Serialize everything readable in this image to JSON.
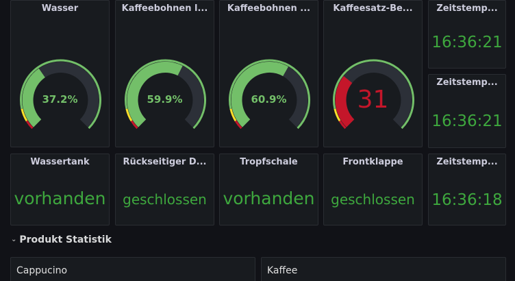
{
  "gauges": [
    {
      "title": "Wasser",
      "value": 37.2,
      "display": "37.2%",
      "color": "#73bf69"
    },
    {
      "title": "Kaffeebohnen l...",
      "value": 59.9,
      "display": "59.9%",
      "color": "#73bf69"
    },
    {
      "title": "Kaffeebohnen ...",
      "value": 60.9,
      "display": "60.9%",
      "color": "#73bf69"
    },
    {
      "title": "Kaffeesatz-Be...",
      "value": 31,
      "display": "31",
      "color": "#c4162a"
    }
  ],
  "timestamps": [
    {
      "title": "Zeitstemp...",
      "value": "16:36:21"
    },
    {
      "title": "Zeitstemp...",
      "value": "16:36:21"
    },
    {
      "title": "Zeitstemp...",
      "value": "16:36:18"
    }
  ],
  "status": [
    {
      "title": "Wassertank",
      "value": "vorhanden"
    },
    {
      "title": "Rückseitiger D...",
      "value": "geschlossen"
    },
    {
      "title": "Tropfschale",
      "value": "vorhanden"
    },
    {
      "title": "Frontklappe",
      "value": "geschlossen"
    }
  ],
  "row": {
    "title": "Produkt Statistik"
  },
  "products": [
    {
      "title": "Cappucino",
      "fill_fraction": 0.36
    },
    {
      "title": "Kaffee",
      "fill_fraction": 0.62
    }
  ],
  "colors": {
    "threshold_green": "#73bf69",
    "threshold_yellow": "#fade2a",
    "threshold_red": "#c4162a",
    "track": "#2c3038",
    "stat_green": "#3ea83e"
  }
}
